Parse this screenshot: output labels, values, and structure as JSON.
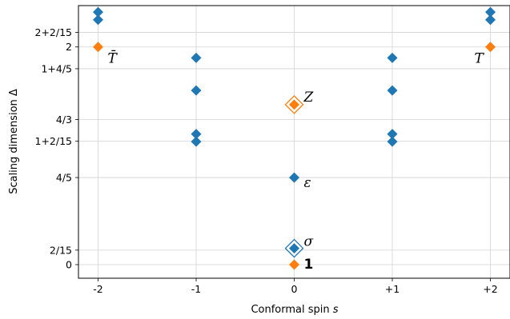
{
  "chart_data": {
    "type": "scatter",
    "xlabel_text": "Conformal spin ",
    "xlabel_var": "s",
    "ylabel": "Scaling dimension Δ",
    "xlim": [
      -2.2,
      2.2
    ],
    "ylim": [
      -0.125,
      2.38
    ],
    "grid": true,
    "x_ticks": [
      {
        "value": -2,
        "label": "-2"
      },
      {
        "value": -1,
        "label": "-1"
      },
      {
        "value": 0,
        "label": "0"
      },
      {
        "value": 1,
        "label": "+1"
      },
      {
        "value": 2,
        "label": "+2"
      }
    ],
    "y_ticks": [
      {
        "value": 0,
        "label": "0"
      },
      {
        "value": 0.1333,
        "label": "2/15"
      },
      {
        "value": 0.8,
        "label": "4/5"
      },
      {
        "value": 1.1333,
        "label": "1+2/15"
      },
      {
        "value": 1.3333,
        "label": "4/3"
      },
      {
        "value": 1.8,
        "label": "1+4/5"
      },
      {
        "value": 2,
        "label": "2"
      },
      {
        "value": 2.1333,
        "label": "2+2/15"
      }
    ],
    "colors": {
      "blue": "#1f77b4",
      "orange": "#ff7f0e"
    },
    "series": [
      {
        "color": "blue",
        "points": [
          [
            -2,
            2.25
          ],
          [
            -2,
            2.32
          ],
          [
            -1,
            1.9
          ],
          [
            -1,
            1.6
          ],
          [
            -1,
            1.2
          ],
          [
            -1,
            1.13
          ],
          [
            0,
            0.8
          ],
          [
            0,
            0.15
          ],
          [
            1,
            1.9
          ],
          [
            1,
            1.6
          ],
          [
            1,
            1.2
          ],
          [
            1,
            1.13
          ],
          [
            2,
            2.25
          ],
          [
            2,
            2.32
          ]
        ]
      },
      {
        "color": "orange",
        "points": [
          [
            -2,
            2
          ],
          [
            2,
            2
          ],
          [
            0,
            1.47
          ],
          [
            0,
            0
          ]
        ]
      }
    ],
    "highlighted": [
      {
        "x": 0,
        "y": 1.47,
        "color": "orange"
      },
      {
        "x": 0,
        "y": 0.15,
        "color": "blue"
      }
    ],
    "annotations": [
      {
        "text": "T̄",
        "x": -2,
        "y": 2,
        "dx": 12,
        "dy": 20,
        "bold": false
      },
      {
        "text": "T",
        "x": 2,
        "y": 2,
        "dx": -20,
        "dy": 20,
        "bold": false
      },
      {
        "text": "Z",
        "x": 0,
        "y": 1.47,
        "dx": 12,
        "dy": -4,
        "bold": false
      },
      {
        "text": "ε",
        "x": 0,
        "y": 0.8,
        "dx": 12,
        "dy": 12,
        "bold": false
      },
      {
        "text": "σ",
        "x": 0,
        "y": 0.15,
        "dx": 12,
        "dy": -3,
        "bold": false
      },
      {
        "text": "1",
        "x": 0,
        "y": 0,
        "dx": 12,
        "dy": 5,
        "bold": true
      }
    ]
  }
}
